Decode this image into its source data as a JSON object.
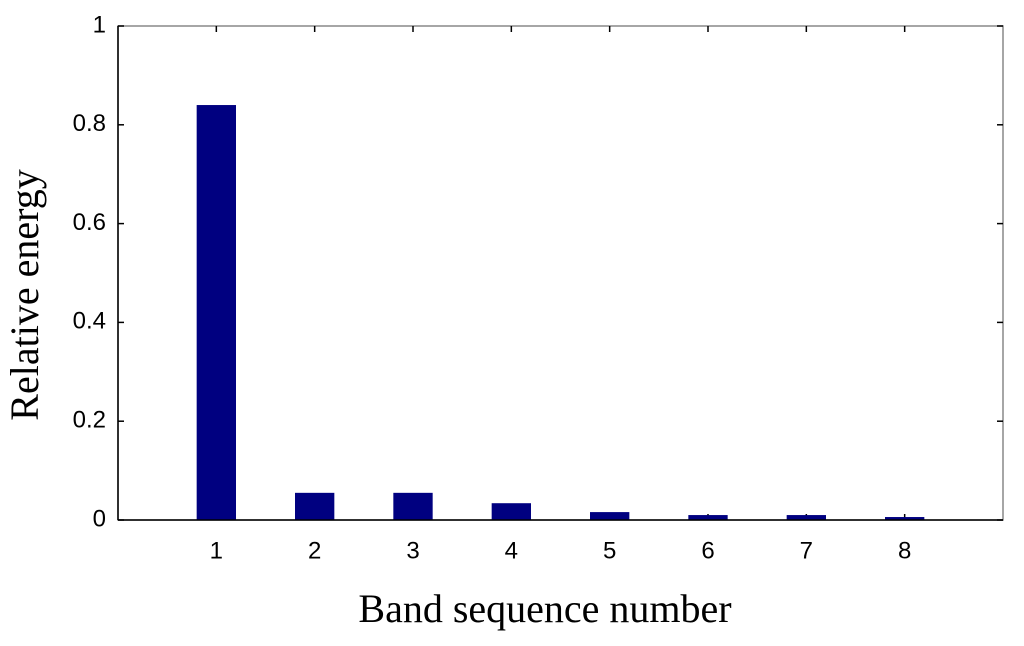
{
  "chart_data": {
    "type": "bar",
    "x_label": "Band sequence number",
    "y_label": "Relative energy",
    "x": [
      1,
      2,
      3,
      4,
      5,
      6,
      7,
      8
    ],
    "values": [
      0.84,
      0.055,
      0.055,
      0.034,
      0.016,
      0.01,
      0.01,
      0.006
    ],
    "color": "#000080",
    "xlim": [
      0,
      9
    ],
    "xticks": [
      1,
      2,
      3,
      4,
      5,
      6,
      7,
      8
    ],
    "ylim": [
      0,
      1
    ],
    "yticks": [
      0,
      0.2,
      0.4,
      0.6,
      0.8,
      1
    ],
    "grid": false
  }
}
